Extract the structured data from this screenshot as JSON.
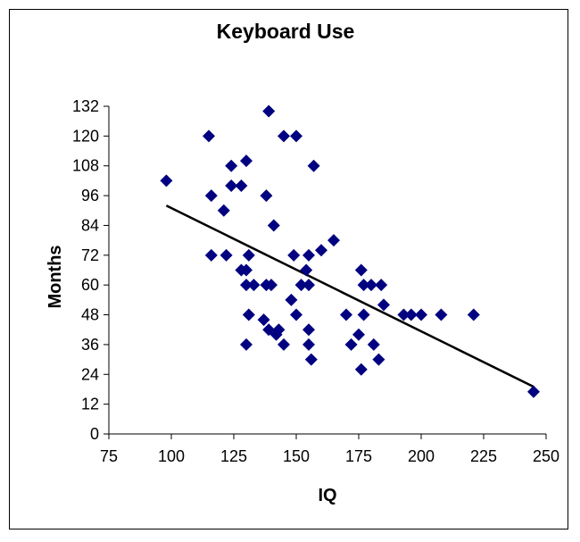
{
  "chart_data": {
    "type": "scatter",
    "title": "Keyboard Use",
    "xlabel": "IQ",
    "ylabel": "Months",
    "xlim": [
      75,
      250
    ],
    "ylim": [
      0,
      132
    ],
    "xticks": [
      75,
      100,
      125,
      150,
      175,
      200,
      225,
      250
    ],
    "yticks": [
      0,
      12,
      24,
      36,
      48,
      60,
      72,
      84,
      96,
      108,
      120,
      132
    ],
    "grid": false,
    "legend": "none",
    "marker_color": "#000080",
    "points": [
      [
        98,
        102
      ],
      [
        115,
        120
      ],
      [
        116,
        96
      ],
      [
        116,
        72
      ],
      [
        121,
        90
      ],
      [
        122,
        72
      ],
      [
        124,
        108
      ],
      [
        124,
        100
      ],
      [
        128,
        100
      ],
      [
        128,
        66
      ],
      [
        130,
        110
      ],
      [
        130,
        66
      ],
      [
        130,
        60
      ],
      [
        130,
        36
      ],
      [
        131,
        72
      ],
      [
        131,
        48
      ],
      [
        133,
        60
      ],
      [
        137,
        46
      ],
      [
        138,
        60
      ],
      [
        138,
        96
      ],
      [
        139,
        130
      ],
      [
        139,
        42
      ],
      [
        140,
        60
      ],
      [
        141,
        84
      ],
      [
        142,
        40
      ],
      [
        143,
        42
      ],
      [
        145,
        120
      ],
      [
        145,
        36
      ],
      [
        148,
        54
      ],
      [
        149,
        72
      ],
      [
        150,
        48
      ],
      [
        150,
        120
      ],
      [
        152,
        60
      ],
      [
        154,
        66
      ],
      [
        155,
        72
      ],
      [
        155,
        42
      ],
      [
        155,
        36
      ],
      [
        155,
        60
      ],
      [
        156,
        30
      ],
      [
        157,
        108
      ],
      [
        160,
        74
      ],
      [
        165,
        78
      ],
      [
        170,
        48
      ],
      [
        172,
        36
      ],
      [
        175,
        40
      ],
      [
        176,
        66
      ],
      [
        176,
        26
      ],
      [
        177,
        60
      ],
      [
        177,
        48
      ],
      [
        180,
        60
      ],
      [
        181,
        36
      ],
      [
        183,
        30
      ],
      [
        184,
        60
      ],
      [
        185,
        52
      ],
      [
        193,
        48
      ],
      [
        196,
        48
      ],
      [
        200,
        48
      ],
      [
        208,
        48
      ],
      [
        221,
        48
      ],
      [
        245,
        17
      ]
    ],
    "trendline": {
      "x": [
        98,
        245
      ],
      "y": [
        92,
        19
      ]
    }
  }
}
